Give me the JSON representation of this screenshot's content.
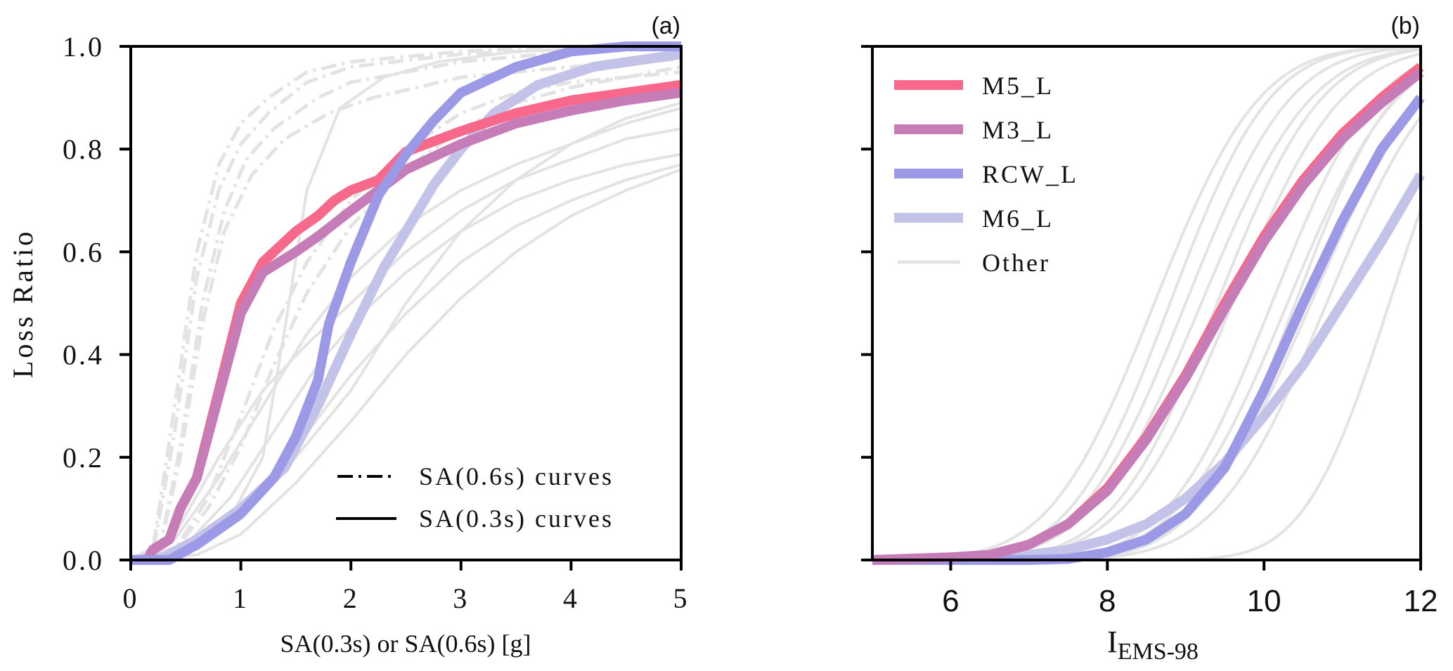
{
  "chart_data": [
    {
      "type": "line",
      "panel_label": "(a)",
      "xlabel": "SA(0.3s) or SA(0.6s) [g]",
      "ylabel": "Loss Ratio",
      "xlim": [
        0,
        5
      ],
      "ylim": [
        0,
        1
      ],
      "xticks": [
        "0",
        "1",
        "2",
        "3",
        "4",
        "5"
      ],
      "yticks": [
        "0.0",
        "0.2",
        "0.4",
        "0.6",
        "0.8",
        "1.0"
      ],
      "grid": false,
      "legend": {
        "placement": "bottom-right",
        "entries": [
          {
            "label": "SA(0.6s) curves",
            "style": "dashdot"
          },
          {
            "label": "SA(0.3s) curves",
            "style": "solid"
          }
        ]
      },
      "series": [
        {
          "name": "M5_L",
          "color": "#F7688A",
          "style": "solid",
          "highlight": true,
          "x": [
            0,
            0.15,
            0.2,
            0.35,
            0.45,
            0.6,
            0.8,
            1.0,
            1.2,
            1.5,
            1.7,
            1.85,
            2.0,
            2.25,
            2.5,
            3.0,
            3.5,
            4.0,
            4.5,
            5.0
          ],
          "y": [
            0,
            0.0,
            0.02,
            0.04,
            0.1,
            0.16,
            0.33,
            0.5,
            0.58,
            0.64,
            0.67,
            0.7,
            0.72,
            0.74,
            0.795,
            0.835,
            0.87,
            0.895,
            0.91,
            0.925
          ]
        },
        {
          "name": "M3_L",
          "color": "#C67DB7",
          "style": "solid",
          "highlight": true,
          "x": [
            0,
            0.15,
            0.2,
            0.35,
            0.45,
            0.6,
            0.8,
            1.0,
            1.2,
            1.5,
            1.7,
            2.0,
            2.5,
            3.0,
            3.5,
            4.0,
            4.5,
            5.0
          ],
          "y": [
            0,
            0.0,
            0.02,
            0.04,
            0.1,
            0.16,
            0.32,
            0.48,
            0.56,
            0.6,
            0.63,
            0.68,
            0.76,
            0.81,
            0.85,
            0.875,
            0.895,
            0.91
          ]
        },
        {
          "name": "RCW_L",
          "color": "#9C9AE6",
          "style": "solid",
          "highlight": true,
          "x": [
            0,
            0.35,
            0.6,
            1.0,
            1.3,
            1.5,
            1.7,
            1.8,
            2.0,
            2.25,
            2.5,
            2.75,
            3.0,
            3.5,
            4.0,
            4.5,
            5.0
          ],
          "y": [
            0,
            0,
            0.03,
            0.09,
            0.16,
            0.24,
            0.35,
            0.46,
            0.58,
            0.71,
            0.79,
            0.855,
            0.91,
            0.96,
            0.99,
            1.0,
            1.0
          ]
        },
        {
          "name": "M6_L",
          "color": "#C3C2E8",
          "style": "solid",
          "highlight": true,
          "x": [
            0,
            0.3,
            0.6,
            1.0,
            1.4,
            1.7,
            2.0,
            2.3,
            2.5,
            2.75,
            3.0,
            3.3,
            3.7,
            4.2,
            5.0
          ],
          "y": [
            0,
            0.005,
            0.04,
            0.1,
            0.18,
            0.3,
            0.44,
            0.57,
            0.64,
            0.73,
            0.8,
            0.87,
            0.925,
            0.96,
            0.985
          ]
        },
        {
          "name": "Other",
          "color": "#E3E3E3",
          "style": "dashdot",
          "x": [
            0,
            0.2,
            0.4,
            0.6,
            0.8,
            1.0,
            1.25,
            1.6,
            2.0,
            3.0,
            4.0,
            5.0
          ],
          "y": [
            0,
            0.02,
            0.3,
            0.6,
            0.77,
            0.85,
            0.9,
            0.95,
            0.97,
            0.99,
            1.0,
            1.0
          ]
        },
        {
          "name": "Other",
          "color": "#E3E3E3",
          "style": "dashdot",
          "x": [
            0,
            0.2,
            0.4,
            0.6,
            0.8,
            1.0,
            1.25,
            1.6,
            2.0,
            3.0,
            4.0,
            5.0
          ],
          "y": [
            0,
            0.01,
            0.25,
            0.55,
            0.72,
            0.81,
            0.87,
            0.93,
            0.96,
            0.985,
            0.995,
            1.0
          ]
        },
        {
          "name": "Other",
          "color": "#E3E3E3",
          "style": "dashdot",
          "x": [
            0,
            0.25,
            0.45,
            0.65,
            0.85,
            1.05,
            1.3,
            1.7,
            2.0,
            3.0,
            4.0,
            5.0
          ],
          "y": [
            0,
            0.01,
            0.22,
            0.5,
            0.68,
            0.78,
            0.84,
            0.9,
            0.93,
            0.97,
            0.99,
            0.995
          ]
        },
        {
          "name": "Other",
          "color": "#E3E3E3",
          "style": "dashdot",
          "x": [
            0,
            0.25,
            0.45,
            0.65,
            0.85,
            1.1,
            1.4,
            1.8,
            2.2,
            3.0,
            4.0,
            5.0
          ],
          "y": [
            0,
            0.01,
            0.2,
            0.46,
            0.64,
            0.75,
            0.82,
            0.87,
            0.9,
            0.94,
            0.96,
            0.975
          ]
        },
        {
          "name": "Other",
          "color": "#E3E3E3",
          "style": "dashdot",
          "x": [
            0,
            0.4,
            0.7,
            1.0,
            1.3,
            1.6,
            2.0,
            2.5,
            3.0,
            3.5,
            4.0,
            5.0
          ],
          "y": [
            0,
            0.02,
            0.12,
            0.28,
            0.45,
            0.58,
            0.7,
            0.8,
            0.87,
            0.91,
            0.93,
            0.95
          ]
        },
        {
          "name": "Other",
          "color": "#E3E3E3",
          "style": "dashdot",
          "x": [
            0,
            0.4,
            0.7,
            1.0,
            1.3,
            1.6,
            2.0,
            2.5,
            3.0,
            3.5,
            4.0,
            5.0
          ],
          "y": [
            0,
            0.02,
            0.1,
            0.22,
            0.38,
            0.52,
            0.65,
            0.76,
            0.84,
            0.89,
            0.92,
            0.96
          ]
        },
        {
          "name": "Other",
          "color": "#E3E3E3",
          "style": "solid",
          "x": [
            0,
            0.5,
            0.9,
            1.2,
            1.4,
            1.6,
            1.9,
            2.3,
            2.8,
            3.5,
            4.5,
            5.0
          ],
          "y": [
            0,
            0.01,
            0.08,
            0.2,
            0.45,
            0.72,
            0.88,
            0.94,
            0.97,
            0.99,
            1.0,
            1.0
          ]
        },
        {
          "name": "Other",
          "color": "#E3E3E3",
          "style": "solid",
          "x": [
            0,
            0.4,
            0.8,
            1.2,
            1.6,
            2.0,
            2.5,
            3.0,
            3.5,
            4.0,
            4.5,
            5.0
          ],
          "y": [
            0,
            0.05,
            0.2,
            0.33,
            0.42,
            0.5,
            0.6,
            0.68,
            0.74,
            0.78,
            0.82,
            0.84
          ]
        },
        {
          "name": "Other",
          "color": "#E3E3E3",
          "style": "solid",
          "x": [
            0,
            0.4,
            0.8,
            1.2,
            1.6,
            2.0,
            2.5,
            3.0,
            3.5,
            4.0,
            4.5,
            5.0
          ],
          "y": [
            0,
            0.04,
            0.16,
            0.3,
            0.44,
            0.55,
            0.65,
            0.72,
            0.77,
            0.81,
            0.85,
            0.88
          ]
        },
        {
          "name": "Other",
          "color": "#E3E3E3",
          "style": "solid",
          "x": [
            0,
            0.5,
            0.9,
            1.3,
            1.7,
            2.1,
            2.5,
            3.0,
            3.5,
            4.0,
            4.5,
            5.0
          ],
          "y": [
            0,
            0.03,
            0.12,
            0.25,
            0.38,
            0.48,
            0.56,
            0.64,
            0.7,
            0.74,
            0.77,
            0.79
          ]
        },
        {
          "name": "Other",
          "color": "#E3E3E3",
          "style": "solid",
          "x": [
            0,
            0.5,
            1.0,
            1.5,
            2.0,
            2.5,
            3.0,
            3.5,
            4.0,
            4.5,
            5.0
          ],
          "y": [
            0,
            0.02,
            0.1,
            0.22,
            0.36,
            0.48,
            0.58,
            0.65,
            0.7,
            0.74,
            0.77
          ]
        },
        {
          "name": "Other",
          "color": "#E3E3E3",
          "style": "solid",
          "x": [
            0,
            0.6,
            1.0,
            1.5,
            2.0,
            2.5,
            3.0,
            3.5,
            4.0,
            4.5,
            5.0
          ],
          "y": [
            0,
            0.01,
            0.05,
            0.15,
            0.27,
            0.4,
            0.51,
            0.6,
            0.67,
            0.72,
            0.76
          ]
        },
        {
          "name": "Other",
          "color": "#E3E3E3",
          "style": "solid",
          "x": [
            0,
            0.6,
            1.0,
            1.5,
            2.0,
            2.5,
            3.0,
            3.5,
            4.0,
            4.5,
            5.0
          ],
          "y": [
            0,
            0.02,
            0.08,
            0.2,
            0.33,
            0.5,
            0.64,
            0.74,
            0.81,
            0.86,
            0.89
          ]
        }
      ]
    },
    {
      "type": "line",
      "panel_label": "(b)",
      "xlabel": "I",
      "xlabel_subscript": "EMS-98",
      "ylabel": "",
      "xlim": [
        5,
        12
      ],
      "ylim": [
        0,
        1
      ],
      "xticks": [
        "6",
        "8",
        "10",
        "12"
      ],
      "yticks": [
        "",
        "",
        "",
        "",
        "",
        ""
      ],
      "grid": false,
      "legend": {
        "placement": "top-left",
        "entries": [
          {
            "label": "M5_L",
            "color": "#F7688A"
          },
          {
            "label": "M3_L",
            "color": "#C67DB7"
          },
          {
            "label": "RCW_L",
            "color": "#9C9AE6"
          },
          {
            "label": "M6_L",
            "color": "#C3C2E8"
          },
          {
            "label": "Other",
            "color": "#E3E3E3"
          }
        ]
      },
      "series": [
        {
          "name": "M5_L",
          "color": "#F7688A",
          "highlight": true,
          "x": [
            5,
            6,
            6.5,
            7,
            7.5,
            8,
            8.5,
            9,
            9.5,
            10,
            10.5,
            11,
            11.5,
            12
          ],
          "y": [
            0,
            0.005,
            0.01,
            0.03,
            0.07,
            0.14,
            0.24,
            0.36,
            0.5,
            0.63,
            0.74,
            0.83,
            0.9,
            0.96
          ]
        },
        {
          "name": "M3_L",
          "color": "#C67DB7",
          "highlight": true,
          "x": [
            5,
            6,
            6.5,
            7,
            7.5,
            8,
            8.5,
            9,
            9.5,
            10,
            10.5,
            11,
            11.5,
            12
          ],
          "y": [
            0,
            0.005,
            0.01,
            0.03,
            0.07,
            0.135,
            0.235,
            0.355,
            0.49,
            0.62,
            0.73,
            0.82,
            0.89,
            0.95
          ]
        },
        {
          "name": "RCW_L",
          "color": "#9C9AE6",
          "highlight": true,
          "x": [
            5,
            7,
            7.5,
            8,
            8.5,
            9,
            9.5,
            10,
            10.5,
            11,
            11.5,
            12
          ],
          "y": [
            0,
            0,
            0.002,
            0.015,
            0.04,
            0.09,
            0.18,
            0.33,
            0.5,
            0.66,
            0.8,
            0.9
          ]
        },
        {
          "name": "M6_L",
          "color": "#C3C2E8",
          "highlight": true,
          "x": [
            5,
            6,
            7,
            7.5,
            8,
            8.5,
            9,
            9.5,
            10,
            10.5,
            11,
            11.5,
            12
          ],
          "y": [
            0,
            0.003,
            0.01,
            0.02,
            0.04,
            0.07,
            0.12,
            0.19,
            0.28,
            0.38,
            0.5,
            0.62,
            0.75
          ]
        },
        {
          "name": "Other",
          "color": "#E3E3E3",
          "mu": 8.6,
          "sigma": 1.05
        },
        {
          "name": "Other",
          "color": "#E3E3E3",
          "mu": 8.8,
          "sigma": 1.0
        },
        {
          "name": "Other",
          "color": "#E3E3E3",
          "mu": 9.0,
          "sigma": 1.05
        },
        {
          "name": "Other",
          "color": "#E3E3E3",
          "mu": 9.2,
          "sigma": 1.1
        },
        {
          "name": "Other",
          "color": "#E3E3E3",
          "mu": 9.4,
          "sigma": 1.05
        },
        {
          "name": "Other",
          "color": "#E3E3E3",
          "mu": 9.6,
          "sigma": 1.1
        },
        {
          "name": "Other",
          "color": "#E3E3E3",
          "mu": 10.1,
          "sigma": 1.05
        },
        {
          "name": "Other",
          "color": "#E3E3E3",
          "mu": 10.3,
          "sigma": 1.1
        },
        {
          "name": "Other",
          "color": "#E3E3E3",
          "mu": 10.4,
          "sigma": 1.0
        },
        {
          "name": "Other",
          "color": "#E3E3E3",
          "mu": 10.6,
          "sigma": 1.15
        },
        {
          "name": "Other",
          "color": "#E3E3E3",
          "mu": 10.8,
          "sigma": 1.1
        },
        {
          "name": "Other",
          "color": "#E3E3E3",
          "mu": 11.6,
          "sigma": 0.85
        }
      ]
    }
  ]
}
